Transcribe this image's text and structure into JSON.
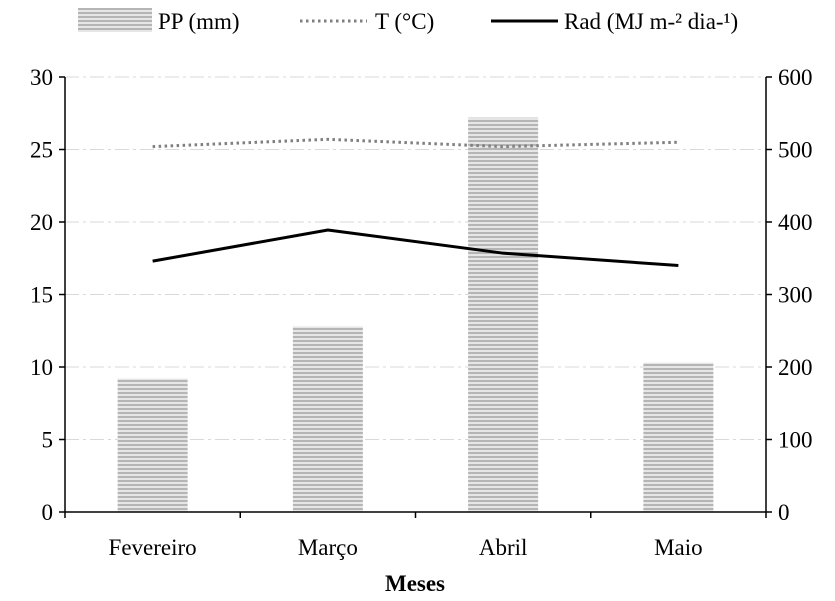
{
  "chart_data": {
    "type": "bar",
    "categories": [
      "Fevereiro",
      "Março",
      "Abril",
      "Maio"
    ],
    "xlabel": "Meses",
    "y_left": {
      "ticks": [
        "0",
        "5",
        "10",
        "15",
        "20",
        "25",
        "30"
      ],
      "range": [
        0,
        30
      ]
    },
    "y_right": {
      "ticks": [
        "0",
        "100",
        "200",
        "300",
        "400",
        "500",
        "600"
      ],
      "range": [
        0,
        600
      ]
    },
    "grid": true,
    "legend_position": "top",
    "series": [
      {
        "name": "PP (mm)",
        "type": "bar",
        "axis": "left",
        "values": [
          9.2,
          12.8,
          27.2,
          10.3
        ],
        "color": "#bdbdbd"
      },
      {
        "name": "T (°C)",
        "type": "line",
        "style": "dotted",
        "axis": "left",
        "values": [
          25.2,
          25.7,
          25.2,
          25.5
        ],
        "color": "#7f7f7f"
      },
      {
        "name": "Rad (MJ m-² dia-¹)",
        "type": "line",
        "style": "solid",
        "axis": "right",
        "values": [
          346,
          389,
          357,
          340
        ],
        "color": "#000000"
      }
    ]
  }
}
